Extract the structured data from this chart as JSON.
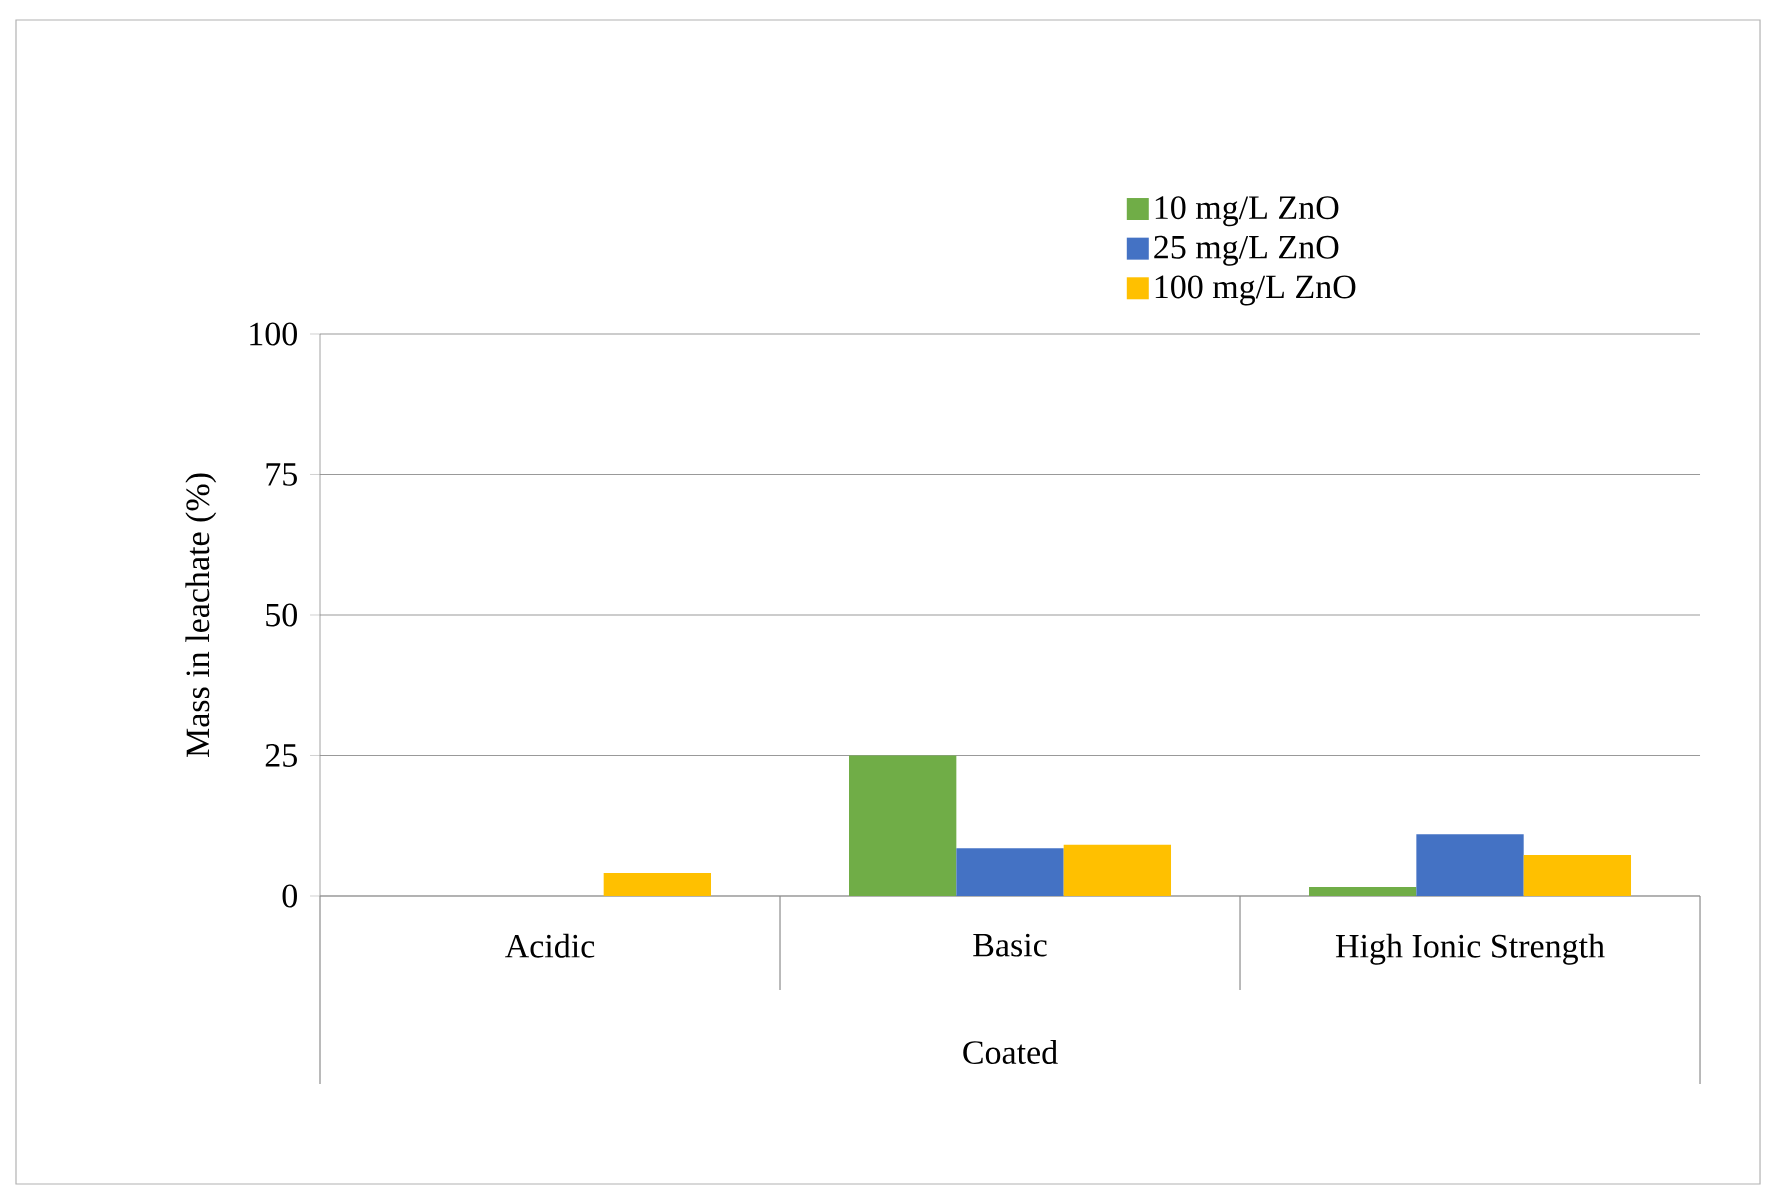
{
  "chart_data": {
    "type": "bar",
    "xlabel": "Coated",
    "ylabel": "Mass in leachate (%)",
    "categories": [
      "Acidic",
      "Basic",
      "High Ionic Strength"
    ],
    "series": [
      {
        "name": "10 mg/L ZnO",
        "color": "#70ad47",
        "values": [
          0,
          25,
          1.6
        ]
      },
      {
        "name": "25 mg/L ZnO",
        "color": "#4472c4",
        "values": [
          0,
          8.5,
          11
        ]
      },
      {
        "name": "100 mg/L ZnO",
        "color": "#ffc000",
        "values": [
          4.1,
          9.1,
          7.3
        ]
      }
    ],
    "ylim": [
      0,
      100
    ],
    "yticks": [
      0,
      25,
      50,
      75,
      100
    ],
    "grid": "y",
    "legend": "top right"
  }
}
